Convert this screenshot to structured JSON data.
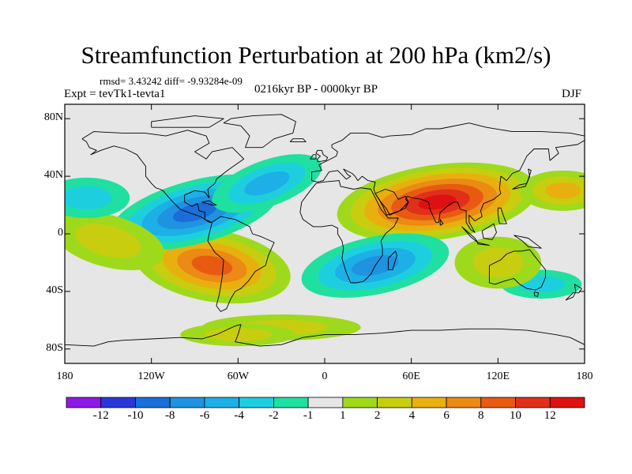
{
  "figure": {
    "title": "Streamfunction Perturbation at 200 hPa (km2/s)",
    "stats_line": "rmsd= 3.43242  diff= -9.93284e-09",
    "experiment_line": "Expt = tevTk1-tevta1",
    "period_line": "0216kyr BP - 0000kyr BP",
    "season": "DJF"
  },
  "axes": {
    "x_ticks": [
      {
        "value": -180,
        "label": "180"
      },
      {
        "value": -120,
        "label": "120W"
      },
      {
        "value": -60,
        "label": "60W"
      },
      {
        "value": 0,
        "label": "0"
      },
      {
        "value": 60,
        "label": "60E"
      },
      {
        "value": 120,
        "label": "120E"
      },
      {
        "value": 180,
        "label": "180"
      }
    ],
    "y_ticks": [
      {
        "value": 80,
        "label": "80N"
      },
      {
        "value": 40,
        "label": "40N"
      },
      {
        "value": 0,
        "label": "0"
      },
      {
        "value": -40,
        "label": "40S"
      },
      {
        "value": -80,
        "label": "80S"
      }
    ],
    "lon_range": [
      -180,
      180
    ],
    "lat_range": [
      -90,
      90
    ]
  },
  "colorbar": {
    "labels": [
      "-12",
      "-10",
      "-8",
      "-6",
      "-4",
      "-2",
      "-1",
      "1",
      "2",
      "4",
      "6",
      "8",
      "10",
      "12"
    ],
    "colors": [
      "#8c1ae6",
      "#2838d8",
      "#1a6ed9",
      "#1f92e0",
      "#1cb0e6",
      "#1dcfde",
      "#1fe0a0",
      "#e6e6e6",
      "#9fd91c",
      "#c8cd0f",
      "#e8b00f",
      "#eb8a14",
      "#e85a12",
      "#e0301a",
      "#dd1111"
    ]
  },
  "chart_data": {
    "type": "heatmap",
    "title": "Streamfunction Perturbation at 200 hPa (km2/s)",
    "variable": "streamfunction perturbation",
    "units": "km2/s",
    "level": "200 hPa",
    "season": "DJF",
    "x_range": [
      -180,
      180
    ],
    "y_range": [
      -90,
      90
    ],
    "contour_levels": [
      -12,
      -10,
      -8,
      -6,
      -4,
      -2,
      -1,
      1,
      2,
      4,
      6,
      8,
      10,
      12
    ],
    "features": [
      {
        "lon": 78,
        "lat": 22,
        "value": 12,
        "kind": "max"
      },
      {
        "lon": -78,
        "lat": -22,
        "value": 8,
        "kind": "max"
      },
      {
        "lon": -90,
        "lat": 15,
        "value": -8,
        "kind": "min"
      },
      {
        "lon": 35,
        "lat": -22,
        "value": -6,
        "kind": "min"
      },
      {
        "lon": -40,
        "lat": 35,
        "value": -4,
        "kind": "min"
      },
      {
        "lon": 165,
        "lat": 30,
        "value": 5,
        "kind": "max"
      },
      {
        "lon": -150,
        "lat": -5,
        "value": 3,
        "kind": "max"
      },
      {
        "lon": -165,
        "lat": 25,
        "value": -2,
        "kind": "min"
      },
      {
        "lon": 150,
        "lat": -35,
        "value": -2,
        "kind": "min"
      },
      {
        "lon": 120,
        "lat": -20,
        "value": 3,
        "kind": "max"
      },
      {
        "lon": -30,
        "lat": -65,
        "value": 2,
        "kind": "max"
      },
      {
        "lon": -60,
        "lat": -70,
        "value": 2,
        "kind": "max"
      }
    ]
  }
}
